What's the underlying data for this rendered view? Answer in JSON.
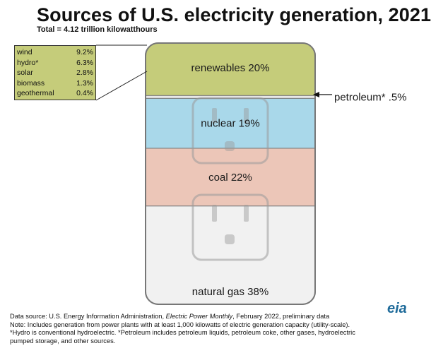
{
  "title": "Sources of U.S. electricity generation, 2021",
  "subtitle": "Total = 4.12 trillion kilowatthours",
  "chart_data": {
    "type": "stacked-bar",
    "title": "Sources of U.S. electricity generation, 2021",
    "total": "4.12 trillion kilowatthours",
    "segments": [
      {
        "name": "renewables",
        "label": "renewables 20%",
        "value": 20,
        "color": "#c5cc7a"
      },
      {
        "name": "petroleum*",
        "label": "petroleum* .5%",
        "value": 0.5,
        "color": "#e8e8e8"
      },
      {
        "name": "nuclear",
        "label": "nuclear 19%",
        "value": 19,
        "color": "#a9d8ea"
      },
      {
        "name": "coal",
        "label": "coal 22%",
        "value": 22,
        "color": "#ecc6b8"
      },
      {
        "name": "natural gas",
        "label": "natural gas 38%",
        "value": 38,
        "color": "#f1f1f1"
      }
    ],
    "renewables_breakdown": [
      {
        "name": "wind",
        "value": "9.2%"
      },
      {
        "name": "hydro*",
        "value": "6.3%"
      },
      {
        "name": "solar",
        "value": "2.8%"
      },
      {
        "name": "biomass",
        "value": "1.3%"
      },
      {
        "name": "geothermal",
        "value": "0.4%"
      }
    ]
  },
  "footer": {
    "source_prefix": "Data source: U.S. Energy Information Administration, ",
    "source_pub": "Electric Power Monthly",
    "source_suffix": ", February 2022, preliminary data",
    "note1": "Note: Includes generation from power plants with at least 1,000 kilowatts of electric generation capacity (utility-scale).",
    "note2": "*Hydro is conventional hydroelectric. *Petroleum includes petroleum liquids, petroleum coke, other gases, hydroelectric",
    "note3": "pumped storage, and other sources."
  },
  "logo": "eia"
}
